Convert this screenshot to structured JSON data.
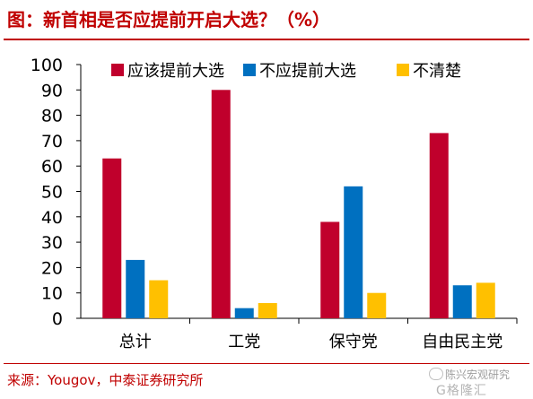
{
  "header": {
    "title": "图：新首相是否应提前开启大选？（%）"
  },
  "footer": {
    "source": "来源：Yougov，中泰证券研究所"
  },
  "watermark": {
    "name": "陈兴宏观研究",
    "logo_text": "G格隆汇"
  },
  "colors": {
    "accent": "#c00000",
    "series": [
      "#c0002c",
      "#0070c0",
      "#ffc000"
    ]
  },
  "chart_data": {
    "type": "bar",
    "categories": [
      "总计",
      "工党",
      "保守党",
      "自由民主党"
    ],
    "series": [
      {
        "name": "应该提前大选",
        "values": [
          63,
          90,
          38,
          73
        ]
      },
      {
        "name": "不应提前大选",
        "values": [
          23,
          4,
          52,
          13
        ]
      },
      {
        "name": "不清楚",
        "values": [
          15,
          6,
          10,
          14
        ]
      }
    ],
    "ylim": [
      0,
      100
    ],
    "yticks": [
      0,
      10,
      20,
      30,
      40,
      50,
      60,
      70,
      80,
      90,
      100
    ],
    "grid": false,
    "legend": "top"
  }
}
